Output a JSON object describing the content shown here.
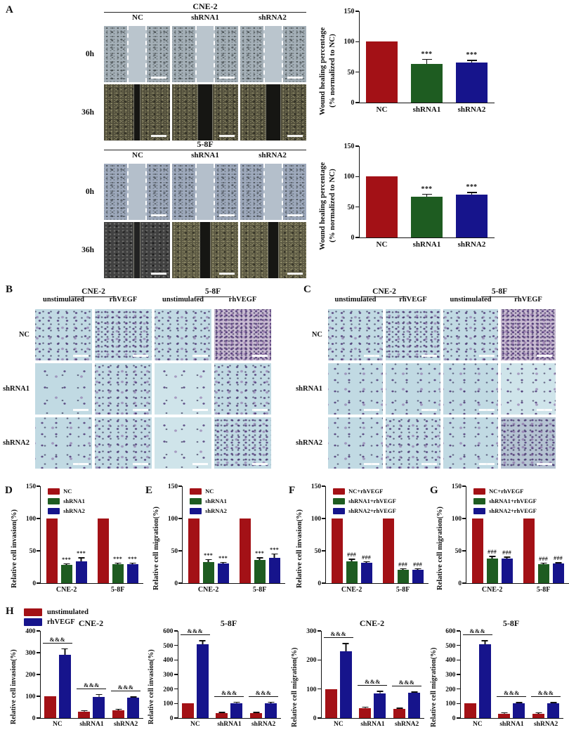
{
  "colors": {
    "red": "#a31116",
    "green": "#1e5c21",
    "blue": "#16148c"
  },
  "panels": {
    "A": {
      "label": "A",
      "blocks": [
        {
          "cell_line": "CNE-2",
          "columns": [
            "NC",
            "shRNA1",
            "shRNA2"
          ],
          "rows": [
            "0h",
            "36h"
          ],
          "images": [
            [
              "w0 side-gray",
              "w0 side-gray",
              "w0 side-gray"
            ],
            [
              "w36 olive gap-sm",
              "w36 olive gap-lg",
              "w36 olive gap-lg"
            ]
          ]
        },
        {
          "cell_line": "5-8F",
          "columns": [
            "NC",
            "shRNA1",
            "shRNA2"
          ],
          "rows": [
            "0h",
            "36h"
          ],
          "images": [
            [
              "w0 side-blue",
              "w0 side-blue",
              "w0 side-blue"
            ],
            [
              "w36 darkgray gap-sm",
              "w36 olive2 gap-md",
              "w36 olive2 gap-md"
            ]
          ]
        }
      ]
    },
    "B": {
      "label": "B",
      "assay": "invasion",
      "cell_lines": [
        "CNE-2",
        "5-8F"
      ],
      "columns": [
        "unstimulated",
        "rhVEGF",
        "unstimulated",
        "rhVEGF"
      ],
      "rows": [
        "NC",
        "shRNA1",
        "shRNA2"
      ],
      "images": [
        [
          "d3",
          "d4",
          "d3",
          "d5 pink"
        ],
        [
          "d1",
          "d3",
          "d1 light",
          "d3"
        ],
        [
          "d2",
          "d3",
          "d1 light",
          "d4"
        ]
      ]
    },
    "C": {
      "label": "C",
      "assay": "migration",
      "cell_lines": [
        "CNE-2",
        "5-8F"
      ],
      "columns": [
        "unstimulated",
        "rhVEGF",
        "unstimulated",
        "rhVEGF"
      ],
      "rows": [
        "NC",
        "shRNA1",
        "shRNA2"
      ],
      "images": [
        [
          "d3",
          "d4",
          "d3",
          "d5 pink"
        ],
        [
          "d2",
          "d2",
          "d2",
          "d2 light"
        ],
        [
          "d2",
          "d3",
          "d2",
          "d4 dark"
        ]
      ]
    },
    "D": {
      "label": "D"
    },
    "E": {
      "label": "E"
    },
    "F": {
      "label": "F"
    },
    "G": {
      "label": "G"
    },
    "H": {
      "label": "H",
      "legend": [
        {
          "label": "unstimulated",
          "color": "red"
        },
        {
          "label": "rhVEGF",
          "color": "blue"
        }
      ]
    }
  },
  "chart_data": [
    {
      "id": "A-wound-CNE2",
      "type": "bar",
      "cell_line": "CNE-2",
      "style": "md",
      "ylabel_lines": [
        "Wound healing percentage",
        "(% normalized to NC)"
      ],
      "ylim": [
        0,
        150
      ],
      "yticks": [
        0,
        50,
        100,
        150
      ],
      "groups": [
        {
          "label": "NC",
          "bars": [
            {
              "value": 100,
              "err": 0,
              "color": "red",
              "sig": ""
            }
          ]
        },
        {
          "label": "shRNA1",
          "bars": [
            {
              "value": 64,
              "err": 8,
              "color": "green",
              "sig": "***"
            }
          ]
        },
        {
          "label": "shRNA2",
          "bars": [
            {
              "value": 66,
              "err": 4,
              "color": "blue",
              "sig": "***"
            }
          ]
        }
      ]
    },
    {
      "id": "A-wound-58F",
      "type": "bar",
      "cell_line": "5-8F",
      "style": "md",
      "ylabel_lines": [
        "Wound healing percentage",
        "(% normalized to NC)"
      ],
      "ylim": [
        0,
        150
      ],
      "yticks": [
        0,
        50,
        100,
        150
      ],
      "groups": [
        {
          "label": "NC",
          "bars": [
            {
              "value": 100,
              "err": 0,
              "color": "red",
              "sig": ""
            }
          ]
        },
        {
          "label": "shRNA1",
          "bars": [
            {
              "value": 67,
              "err": 5,
              "color": "green",
              "sig": "***"
            }
          ]
        },
        {
          "label": "shRNA2",
          "bars": [
            {
              "value": 70,
              "err": 5,
              "color": "blue",
              "sig": "***"
            }
          ]
        }
      ]
    },
    {
      "id": "D-invasion",
      "type": "bar",
      "style": "sm",
      "ylabel": "Relative cell invasion(%)",
      "ylim": [
        0,
        150
      ],
      "yticks": [
        0,
        50,
        100,
        150
      ],
      "legend": [
        {
          "label": "NC",
          "color": "red"
        },
        {
          "label": "shRNA1",
          "color": "green"
        },
        {
          "label": "shRNA2",
          "color": "blue"
        }
      ],
      "groups": [
        {
          "label": "CNE-2",
          "bars": [
            {
              "value": 100,
              "err": 0,
              "color": "red",
              "sig": ""
            },
            {
              "value": 28,
              "err": 3,
              "color": "green",
              "sig": "***"
            },
            {
              "value": 34,
              "err": 6,
              "color": "blue",
              "sig": "***"
            }
          ]
        },
        {
          "label": "5-8F",
          "bars": [
            {
              "value": 100,
              "err": 0,
              "color": "red",
              "sig": ""
            },
            {
              "value": 29,
              "err": 3,
              "color": "green",
              "sig": "***"
            },
            {
              "value": 29,
              "err": 3,
              "color": "blue",
              "sig": "***"
            }
          ]
        }
      ]
    },
    {
      "id": "E-migration",
      "type": "bar",
      "style": "sm",
      "ylabel": "Relative cell migration(%)",
      "ylim": [
        0,
        150
      ],
      "yticks": [
        0,
        50,
        100,
        150
      ],
      "legend": [
        {
          "label": "NC",
          "color": "red"
        },
        {
          "label": "shRNA1",
          "color": "green"
        },
        {
          "label": "shRNA2",
          "color": "blue"
        }
      ],
      "groups": [
        {
          "label": "CNE-2",
          "bars": [
            {
              "value": 100,
              "err": 0,
              "color": "red",
              "sig": ""
            },
            {
              "value": 33,
              "err": 4,
              "color": "green",
              "sig": "***"
            },
            {
              "value": 30,
              "err": 3,
              "color": "blue",
              "sig": "***"
            }
          ]
        },
        {
          "label": "5-8F",
          "bars": [
            {
              "value": 100,
              "err": 0,
              "color": "red",
              "sig": ""
            },
            {
              "value": 36,
              "err": 4,
              "color": "green",
              "sig": "***"
            },
            {
              "value": 39,
              "err": 7,
              "color": "blue",
              "sig": "***"
            }
          ]
        }
      ]
    },
    {
      "id": "F-invasion-rhVEGF",
      "type": "bar",
      "style": "sm",
      "ylabel": "Relative cell invasion(%)",
      "ylim": [
        0,
        150
      ],
      "yticks": [
        0,
        50,
        100,
        150
      ],
      "legend": [
        {
          "label": "NC+rhVEGF",
          "color": "red"
        },
        {
          "label": "shRNA1+rhVEGF",
          "color": "green"
        },
        {
          "label": "shRNA2+rhVEGF",
          "color": "blue"
        }
      ],
      "groups": [
        {
          "label": "CNE-2",
          "bars": [
            {
              "value": 100,
              "err": 0,
              "color": "red",
              "sig": ""
            },
            {
              "value": 34,
              "err": 4,
              "color": "green",
              "sig": "###"
            },
            {
              "value": 32,
              "err": 2,
              "color": "blue",
              "sig": "###"
            }
          ]
        },
        {
          "label": "5-8F",
          "bars": [
            {
              "value": 100,
              "err": 0,
              "color": "red",
              "sig": ""
            },
            {
              "value": 21,
              "err": 2,
              "color": "green",
              "sig": "###"
            },
            {
              "value": 21,
              "err": 2,
              "color": "blue",
              "sig": "###"
            }
          ]
        }
      ]
    },
    {
      "id": "G-migration-rhVEGF",
      "type": "bar",
      "style": "sm",
      "ylabel": "Relative cell migration(%)",
      "ylim": [
        0,
        150
      ],
      "yticks": [
        0,
        50,
        100,
        150
      ],
      "legend": [
        {
          "label": "NC+rhVEGF",
          "color": "red"
        },
        {
          "label": "shRNA1+rhVEGF",
          "color": "green"
        },
        {
          "label": "shRNA2+rhVEGF",
          "color": "blue"
        }
      ],
      "groups": [
        {
          "label": "CNE-2",
          "bars": [
            {
              "value": 100,
              "err": 0,
              "color": "red",
              "sig": ""
            },
            {
              "value": 38,
              "err": 4,
              "color": "green",
              "sig": "###"
            },
            {
              "value": 38,
              "err": 3,
              "color": "blue",
              "sig": "###"
            }
          ]
        },
        {
          "label": "5-8F",
          "bars": [
            {
              "value": 100,
              "err": 0,
              "color": "red",
              "sig": ""
            },
            {
              "value": 29,
              "err": 3,
              "color": "green",
              "sig": "###"
            },
            {
              "value": 30,
              "err": 2,
              "color": "blue",
              "sig": "###"
            }
          ]
        }
      ]
    },
    {
      "id": "H-invasion-CNE2",
      "type": "bar",
      "style": "h",
      "title": "CNE-2",
      "ylabel": "Relative cell invasion(%)",
      "ylim": [
        0,
        400
      ],
      "yticks": [
        0,
        100,
        200,
        300,
        400
      ],
      "groups": [
        {
          "label": "NC",
          "pair_sig": "&&&",
          "bars": [
            {
              "value": 100,
              "err": 0,
              "color": "red",
              "sig": ""
            },
            {
              "value": 290,
              "err": 30,
              "color": "blue",
              "sig": ""
            }
          ]
        },
        {
          "label": "shRNA1",
          "pair_sig": "&&&",
          "bars": [
            {
              "value": 30,
              "err": 3,
              "color": "red",
              "sig": ""
            },
            {
              "value": 98,
              "err": 12,
              "color": "blue",
              "sig": ""
            }
          ]
        },
        {
          "label": "shRNA2",
          "pair_sig": "&&&",
          "bars": [
            {
              "value": 36,
              "err": 4,
              "color": "red",
              "sig": ""
            },
            {
              "value": 92,
              "err": 6,
              "color": "blue",
              "sig": ""
            }
          ]
        }
      ]
    },
    {
      "id": "H-invasion-58F",
      "type": "bar",
      "style": "h",
      "title": "5-8F",
      "ylabel": "Relative cell invasion(%)",
      "ylim": [
        0,
        600
      ],
      "yticks": [
        0,
        100,
        200,
        300,
        400,
        500,
        600
      ],
      "groups": [
        {
          "label": "NC",
          "pair_sig": "&&&",
          "bars": [
            {
              "value": 100,
              "err": 0,
              "color": "red",
              "sig": ""
            },
            {
              "value": 510,
              "err": 25,
              "color": "blue",
              "sig": ""
            }
          ]
        },
        {
          "label": "shRNA1",
          "pair_sig": "&&&",
          "bars": [
            {
              "value": 32,
              "err": 4,
              "color": "red",
              "sig": ""
            },
            {
              "value": 102,
              "err": 7,
              "color": "blue",
              "sig": ""
            }
          ]
        },
        {
          "label": "shRNA2",
          "pair_sig": "&&&",
          "bars": [
            {
              "value": 33,
              "err": 4,
              "color": "red",
              "sig": ""
            },
            {
              "value": 103,
              "err": 7,
              "color": "blue",
              "sig": ""
            }
          ]
        }
      ]
    },
    {
      "id": "H-migration-CNE2",
      "type": "bar",
      "style": "h",
      "title": "CNE-2",
      "ylabel": "Relative cell migration(%)",
      "ylim": [
        0,
        300
      ],
      "yticks": [
        0,
        100,
        200,
        300
      ],
      "groups": [
        {
          "label": "NC",
          "pair_sig": "&&&",
          "bars": [
            {
              "value": 100,
              "err": 0,
              "color": "red",
              "sig": ""
            },
            {
              "value": 230,
              "err": 28,
              "color": "blue",
              "sig": ""
            }
          ]
        },
        {
          "label": "shRNA1",
          "pair_sig": "&&&",
          "bars": [
            {
              "value": 35,
              "err": 3,
              "color": "red",
              "sig": ""
            },
            {
              "value": 85,
              "err": 9,
              "color": "blue",
              "sig": ""
            }
          ]
        },
        {
          "label": "shRNA2",
          "pair_sig": "&&&",
          "bars": [
            {
              "value": 31,
              "err": 3,
              "color": "red",
              "sig": ""
            },
            {
              "value": 86,
              "err": 6,
              "color": "blue",
              "sig": ""
            }
          ]
        }
      ]
    },
    {
      "id": "H-migration-58F",
      "type": "bar",
      "style": "h",
      "title": "5-8F",
      "ylabel": "Relative cell migration(%)",
      "ylim": [
        0,
        600
      ],
      "yticks": [
        0,
        100,
        200,
        300,
        400,
        500,
        600
      ],
      "groups": [
        {
          "label": "NC",
          "pair_sig": "&&&",
          "bars": [
            {
              "value": 100,
              "err": 0,
              "color": "red",
              "sig": ""
            },
            {
              "value": 510,
              "err": 25,
              "color": "blue",
              "sig": ""
            }
          ]
        },
        {
          "label": "shRNA1",
          "pair_sig": "&&&",
          "bars": [
            {
              "value": 30,
              "err": 3,
              "color": "red",
              "sig": ""
            },
            {
              "value": 100,
              "err": 7,
              "color": "blue",
              "sig": ""
            }
          ]
        },
        {
          "label": "shRNA2",
          "pair_sig": "&&&",
          "bars": [
            {
              "value": 31,
              "err": 4,
              "color": "red",
              "sig": ""
            },
            {
              "value": 101,
              "err": 7,
              "color": "blue",
              "sig": ""
            }
          ]
        }
      ]
    }
  ]
}
